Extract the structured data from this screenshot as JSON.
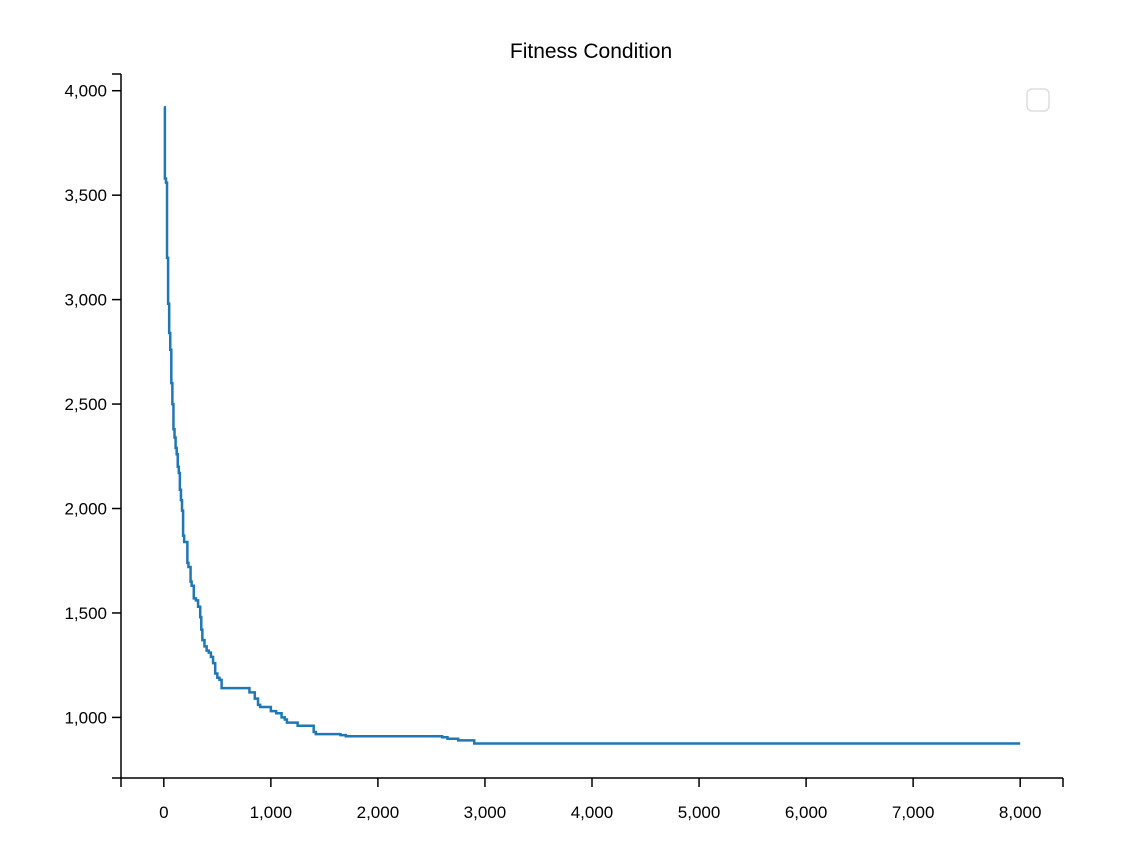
{
  "chart_data": {
    "type": "line",
    "title": "Fitness Condition",
    "xlabel": "",
    "ylabel": "",
    "xlim": [
      -400,
      8400
    ],
    "ylim": [
      710,
      4080
    ],
    "x_ticks": [
      0,
      1000,
      2000,
      3000,
      4000,
      5000,
      6000,
      7000,
      8000
    ],
    "x_tick_labels": [
      "0",
      "1,000",
      "2,000",
      "3,000",
      "4,000",
      "5,000",
      "6,000",
      "7,000",
      "8,000"
    ],
    "y_ticks": [
      1000,
      1500,
      2000,
      2500,
      3000,
      3500,
      4000
    ],
    "y_tick_labels": [
      "1,000",
      "1,500",
      "2,000",
      "2,500",
      "3,000",
      "3,500",
      "4,000"
    ],
    "grid": false,
    "legend": {
      "placement": "top-right",
      "entries": []
    },
    "series": [
      {
        "color": "#1f77b4",
        "interpolation": "step",
        "points": [
          [
            0,
            3920
          ],
          [
            10,
            3580
          ],
          [
            20,
            3560
          ],
          [
            30,
            3200
          ],
          [
            40,
            2980
          ],
          [
            50,
            2840
          ],
          [
            60,
            2760
          ],
          [
            70,
            2600
          ],
          [
            80,
            2500
          ],
          [
            90,
            2380
          ],
          [
            100,
            2340
          ],
          [
            110,
            2290
          ],
          [
            120,
            2260
          ],
          [
            130,
            2200
          ],
          [
            140,
            2170
          ],
          [
            150,
            2090
          ],
          [
            160,
            2040
          ],
          [
            170,
            1990
          ],
          [
            180,
            1870
          ],
          [
            190,
            1840
          ],
          [
            220,
            1740
          ],
          [
            230,
            1720
          ],
          [
            250,
            1650
          ],
          [
            260,
            1630
          ],
          [
            280,
            1570
          ],
          [
            300,
            1560
          ],
          [
            320,
            1530
          ],
          [
            340,
            1480
          ],
          [
            350,
            1420
          ],
          [
            360,
            1370
          ],
          [
            380,
            1340
          ],
          [
            400,
            1320
          ],
          [
            420,
            1310
          ],
          [
            440,
            1290
          ],
          [
            460,
            1260
          ],
          [
            480,
            1210
          ],
          [
            500,
            1190
          ],
          [
            520,
            1180
          ],
          [
            540,
            1140
          ],
          [
            800,
            1120
          ],
          [
            850,
            1090
          ],
          [
            880,
            1060
          ],
          [
            900,
            1050
          ],
          [
            1000,
            1030
          ],
          [
            1050,
            1020
          ],
          [
            1100,
            1000
          ],
          [
            1130,
            990
          ],
          [
            1150,
            975
          ],
          [
            1250,
            960
          ],
          [
            1400,
            930
          ],
          [
            1420,
            920
          ],
          [
            1650,
            915
          ],
          [
            1700,
            910
          ],
          [
            2600,
            905
          ],
          [
            2650,
            898
          ],
          [
            2750,
            890
          ],
          [
            2900,
            875
          ],
          [
            8000,
            875
          ]
        ]
      }
    ]
  }
}
